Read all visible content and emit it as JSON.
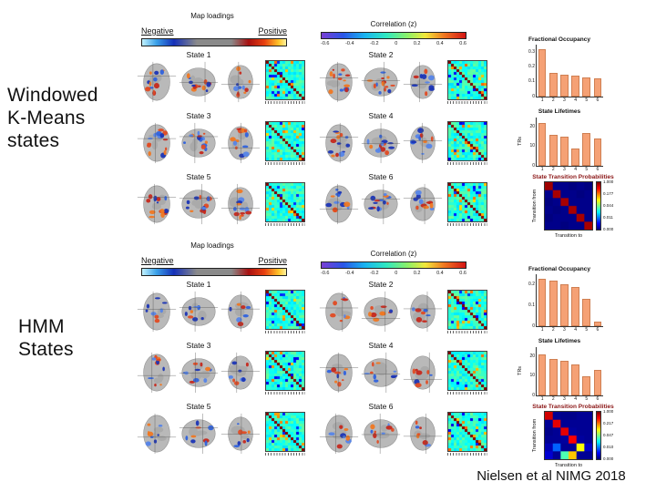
{
  "slide": {
    "label_top": "Windowed\nK-Means\nstates",
    "label_bottom": "HMM\nStates",
    "citation": "Nielsen et al NIMG 2018"
  },
  "panels": [
    {
      "panel": "windowed-kmeans",
      "map_loadings_title": "Map loadings",
      "negative_label": "Negative",
      "positive_label": "Positive",
      "correlation_title": "Correlation (z)",
      "correlation_ticks": [
        "-0.6",
        "-0.4",
        "-0.2",
        "0",
        "0.2",
        "0.4",
        "0.6"
      ],
      "states": [
        "State 1",
        "State 2",
        "State 3",
        "State 4",
        "State 5",
        "State 6"
      ]
    },
    {
      "panel": "hmm",
      "map_loadings_title": "Map loadings",
      "negative_label": "Negative",
      "positive_label": "Positive",
      "correlation_title": "Correlation (z)",
      "correlation_ticks": [
        "-0.6",
        "-0.4",
        "-0.2",
        "0",
        "0.2",
        "0.4",
        "0.6"
      ],
      "states": [
        "State 1",
        "State 2",
        "State 3",
        "State 4",
        "State 5",
        "State 6"
      ]
    }
  ],
  "chart_data": [
    {
      "panel": "windowed-kmeans",
      "type": "bar",
      "title": "Fractional Occupancy",
      "categories": [
        "1",
        "2",
        "3",
        "4",
        "5",
        "6"
      ],
      "values": [
        0.32,
        0.16,
        0.15,
        0.14,
        0.13,
        0.12
      ],
      "ylim": [
        0,
        0.35
      ],
      "yticks": [
        0,
        0.1,
        0.2,
        0.3
      ],
      "xlabel": "",
      "ylabel": ""
    },
    {
      "panel": "windowed-kmeans",
      "type": "bar",
      "title": "State Lifetimes",
      "categories": [
        "1",
        "2",
        "3",
        "4",
        "5",
        "6"
      ],
      "values": [
        22,
        16,
        15,
        9,
        17,
        14
      ],
      "ylim": [
        0,
        25
      ],
      "yticks": [
        0,
        10,
        20
      ],
      "xlabel": "",
      "ylabel": "TRs"
    },
    {
      "panel": "windowed-kmeans",
      "type": "heatmap",
      "title": "State Transition Probabilities",
      "xlabel": "Transition to",
      "ylabel": "Transition from",
      "categories": [
        "1",
        "2",
        "3",
        "4",
        "5",
        "6"
      ],
      "matrix": [
        [
          0.97,
          0.01,
          0.01,
          0.0,
          0.01,
          0.0
        ],
        [
          0.01,
          0.96,
          0.01,
          0.01,
          0.0,
          0.01
        ],
        [
          0.0,
          0.01,
          0.96,
          0.01,
          0.01,
          0.01
        ],
        [
          0.01,
          0.0,
          0.01,
          0.96,
          0.01,
          0.01
        ],
        [
          0.0,
          0.01,
          0.01,
          0.01,
          0.96,
          0.01
        ],
        [
          0.01,
          0.01,
          0.0,
          0.01,
          0.01,
          0.96
        ]
      ],
      "colorbar_ticks": [
        "1.000",
        "0.177",
        "0.044",
        "0.011",
        "0.000"
      ]
    },
    {
      "panel": "hmm",
      "type": "bar",
      "title": "Fractional Occupancy",
      "categories": [
        "1",
        "2",
        "3",
        "4",
        "5",
        "6"
      ],
      "values": [
        0.23,
        0.22,
        0.2,
        0.19,
        0.13,
        0.02
      ],
      "ylim": [
        0,
        0.25
      ],
      "yticks": [
        0,
        0.1,
        0.2
      ],
      "xlabel": "",
      "ylabel": ""
    },
    {
      "panel": "hmm",
      "type": "bar",
      "title": "State Lifetimes",
      "categories": [
        "1",
        "2",
        "3",
        "4",
        "5",
        "6"
      ],
      "values": [
        21,
        19,
        18,
        16,
        10,
        13
      ],
      "ylim": [
        0,
        25
      ],
      "yticks": [
        0,
        10,
        20
      ],
      "xlabel": "",
      "ylabel": "TRs"
    },
    {
      "panel": "hmm",
      "type": "heatmap",
      "title": "State Transition Probabilities",
      "xlabel": "Transition to",
      "ylabel": "Transition from",
      "categories": [
        "1",
        "2",
        "3",
        "4",
        "5",
        "6"
      ],
      "matrix": [
        [
          0.92,
          0.02,
          0.01,
          0.01,
          0.02,
          0.02
        ],
        [
          0.02,
          0.9,
          0.02,
          0.02,
          0.02,
          0.02
        ],
        [
          0.01,
          0.02,
          0.9,
          0.03,
          0.02,
          0.02
        ],
        [
          0.02,
          0.02,
          0.03,
          0.88,
          0.03,
          0.02
        ],
        [
          0.05,
          0.22,
          0.02,
          0.02,
          0.62,
          0.07
        ],
        [
          0.08,
          0.02,
          0.45,
          0.68,
          0.02,
          0.02
        ]
      ],
      "colorbar_ticks": [
        "1.000",
        "0.217",
        "0.047",
        "0.010",
        "0.000"
      ]
    }
  ]
}
